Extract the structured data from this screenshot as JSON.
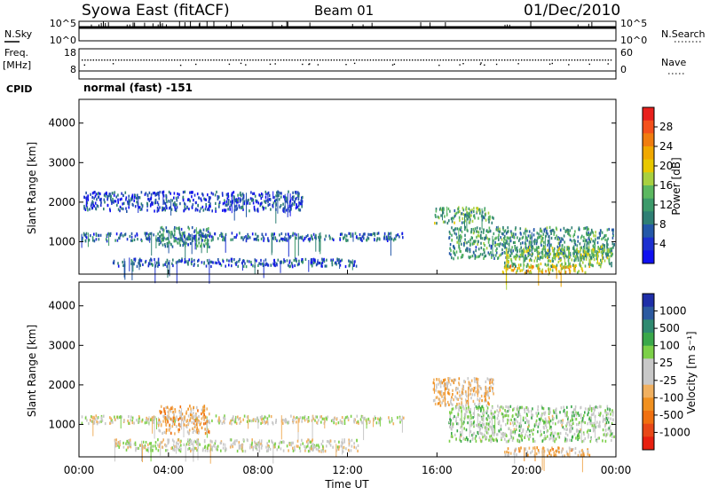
{
  "header": {
    "station": "Syowa East (fitACF)",
    "beam": "Beam 01",
    "date": "01/Dec/2010"
  },
  "top_panels": {
    "nsky_label": "N.Sky",
    "nsearch_label": "N.Search",
    "nsky_ticks": [
      "10^5",
      "10^0"
    ],
    "nsearch_ticks": [
      "10^5",
      "10^0"
    ],
    "freq_label_1": "Freq.",
    "freq_label_2": "[MHz]",
    "freq_ticks": [
      "18",
      "8"
    ],
    "nave_label": "Nave",
    "nave_ticks": [
      "60",
      "0"
    ],
    "cpid_label": "CPID",
    "cpid_value": "normal (fast) -151"
  },
  "power_colorbar": {
    "title": "Power [dB]",
    "ticks": [
      "28",
      "24",
      "20",
      "16",
      "12",
      "8",
      "4"
    ],
    "colors": [
      "#e8201c",
      "#f4511c",
      "#f07d10",
      "#f0a800",
      "#e8c800",
      "#a8d040",
      "#5cb860",
      "#3c9a6a",
      "#2f7f74",
      "#2458a8",
      "#1c30d0",
      "#1010f0"
    ]
  },
  "velocity_colorbar": {
    "title": "Velocity [m s⁻¹]",
    "ticks": [
      "1000",
      "500",
      "100",
      "25",
      "-25",
      "-100",
      "-500",
      "-1000"
    ],
    "colors": [
      "#1e2ea8",
      "#2c5aa0",
      "#2f8a70",
      "#3aa84a",
      "#7cd048",
      "#c8c8c8",
      "#c8c8c8",
      "#f0b060",
      "#f09020",
      "#f07010",
      "#e84818",
      "#e82010"
    ]
  },
  "chart_data": [
    {
      "type": "heatmap",
      "title": "Power [dB]",
      "ylabel": "Slant Range [km]",
      "xlabel": "Time UT",
      "ylim": [
        180,
        4600
      ],
      "yticks": [
        "1000",
        "2000",
        "3000",
        "4000"
      ],
      "xlim": [
        "00:00",
        "24:00"
      ],
      "xticks": [
        "00:00",
        "04:00",
        "08:00",
        "12:00",
        "16:00",
        "20:00",
        "00:00"
      ],
      "clim": [
        0,
        30
      ],
      "echo_regions": [
        {
          "t_start": 0.1,
          "t_end": 14.5,
          "range_low": 1050,
          "range_high": 1250,
          "value": 6
        },
        {
          "t_start": 3.5,
          "t_end": 5.8,
          "range_low": 900,
          "range_high": 1400,
          "value": 9
        },
        {
          "t_start": 1.5,
          "t_end": 12.5,
          "range_low": 400,
          "range_high": 600,
          "value": 5
        },
        {
          "t_start": 0.2,
          "t_end": 10.0,
          "range_low": 1800,
          "range_high": 2300,
          "value": 4
        },
        {
          "t_start": 15.8,
          "t_end": 18.5,
          "range_low": 1500,
          "range_high": 1900,
          "value": 12
        },
        {
          "t_start": 16.5,
          "t_end": 23.9,
          "range_low": 600,
          "range_high": 1400,
          "value": 10
        },
        {
          "t_start": 18.8,
          "t_end": 22.8,
          "range_low": 230,
          "range_high": 450,
          "value": 20
        },
        {
          "t_start": 19.0,
          "t_end": 23.8,
          "range_low": 400,
          "range_high": 900,
          "value": 14
        }
      ]
    },
    {
      "type": "heatmap",
      "title": "Velocity [m s⁻¹]",
      "ylabel": "Slant Range [km]",
      "xlabel": "Time UT",
      "ylim": [
        180,
        4600
      ],
      "yticks": [
        "1000",
        "2000",
        "3000",
        "4000"
      ],
      "xlim": [
        "00:00",
        "24:00"
      ],
      "xticks": [
        "00:00",
        "04:00",
        "08:00",
        "12:00",
        "16:00",
        "20:00",
        "00:00"
      ],
      "clim": [
        -1000,
        1000
      ],
      "echo_regions": [
        {
          "t_start": 0.1,
          "t_end": 14.5,
          "range_low": 1050,
          "range_high": 1250,
          "value": 0
        },
        {
          "t_start": 3.5,
          "t_end": 5.8,
          "range_low": 800,
          "range_high": 1500,
          "value": -300
        },
        {
          "t_start": 1.5,
          "t_end": 12.5,
          "range_low": 350,
          "range_high": 650,
          "value": 0
        },
        {
          "t_start": 15.8,
          "t_end": 18.5,
          "range_low": 1500,
          "range_high": 2200,
          "value": -200
        },
        {
          "t_start": 16.5,
          "t_end": 23.9,
          "range_low": 600,
          "range_high": 1500,
          "value": 150
        },
        {
          "t_start": 19.0,
          "t_end": 22.8,
          "range_low": 230,
          "range_high": 450,
          "value": -250
        }
      ]
    }
  ]
}
